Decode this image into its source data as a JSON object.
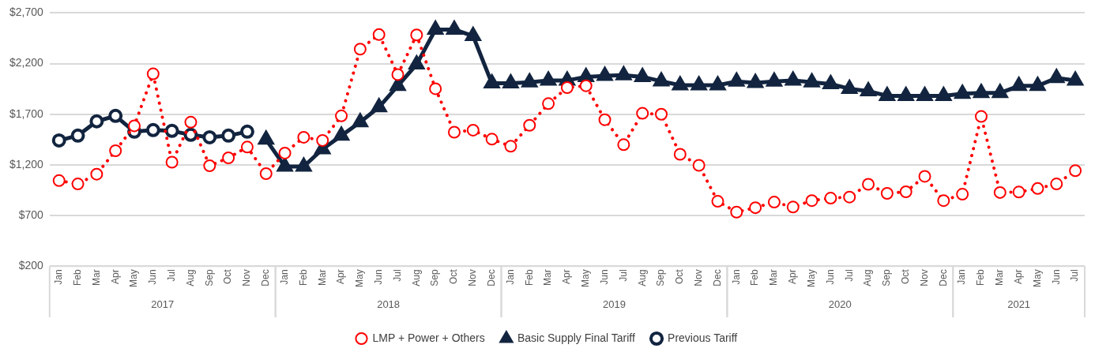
{
  "chart_data": {
    "type": "line",
    "categories": [
      "Jan",
      "Feb",
      "Mar",
      "Apr",
      "May",
      "Jun",
      "Jul",
      "Aug",
      "Sep",
      "Oct",
      "Nov",
      "Dec",
      "Jan",
      "Feb",
      "Mar",
      "Apr",
      "May",
      "Jun",
      "Jul",
      "Aug",
      "Sep",
      "Oct",
      "Nov",
      "Dec",
      "Jan",
      "Feb",
      "Mar",
      "Apr",
      "May",
      "Jun",
      "Jul",
      "Aug",
      "Sep",
      "Oct",
      "Nov",
      "Dec",
      "Jan",
      "Feb",
      "Mar",
      "Apr",
      "May",
      "Jun",
      "Jul",
      "Aug",
      "Sep",
      "Oct",
      "Nov",
      "Dec",
      "Jan",
      "Feb",
      "Mar",
      "Apr",
      "May",
      "Jun",
      "Jul"
    ],
    "series": [
      {
        "name": "Previous Tariff",
        "color": "#12243f",
        "marker": "circle",
        "line_style": "solid",
        "values": [
          1442,
          1489,
          1630,
          1684,
          1528,
          1544,
          1536,
          1497,
          1473,
          1489,
          1528,
          null,
          null,
          null,
          null,
          null,
          null,
          null,
          null,
          null,
          null,
          null,
          null,
          null,
          null,
          null,
          null,
          null,
          null,
          null,
          null,
          null,
          null,
          null,
          null,
          null,
          null,
          null,
          null,
          null,
          null,
          null,
          null,
          null,
          null,
          null,
          null,
          null,
          null,
          null,
          null,
          null,
          null,
          null,
          null
        ]
      },
      {
        "name": "Basic Supply Final Tariff",
        "color": "#12243f",
        "marker": "triangle",
        "line_style": "solid",
        "values": [
          null,
          null,
          null,
          null,
          null,
          null,
          null,
          null,
          null,
          null,
          null,
          1450,
          1184,
          1184,
          1356,
          1489,
          1622,
          1770,
          1981,
          2192,
          2536,
          2536,
          2473,
          2005,
          2005,
          2016,
          2034,
          2034,
          2069,
          2079,
          2086,
          2069,
          2026,
          1987,
          1987,
          1987,
          2023,
          2009,
          2023,
          2034,
          2016,
          1998,
          1952,
          1928,
          1882,
          1882,
          1882,
          1882,
          1903,
          1910,
          1910,
          1980,
          1980,
          2058,
          2034
        ]
      },
      {
        "name": "LMP + Power + Others",
        "color": "#ff0000",
        "marker": "circle",
        "line_style": "dotted",
        "values": [
          1045,
          1012,
          1109,
          1340,
          1586,
          2099,
          1227,
          1622,
          1192,
          1270,
          1376,
          1114,
          1317,
          1473,
          1442,
          1684,
          2343,
          2486,
          2092,
          2483,
          1952,
          1523,
          1543,
          1454,
          1384,
          1591,
          1805,
          1963,
          1981,
          1646,
          1400,
          1709,
          1700,
          1305,
          1196,
          841,
          734,
          778,
          833,
          784,
          848,
          872,
          883,
          1009,
          919,
          935,
          1087,
          848,
          911,
          1678,
          928,
          932,
          967,
          1012,
          1143
        ]
      }
    ],
    "ylim": [
      200,
      2700
    ],
    "yticks": [
      {
        "value": 200,
        "label": "$200"
      },
      {
        "value": 700,
        "label": "$700"
      },
      {
        "value": 1200,
        "label": "$1,200"
      },
      {
        "value": 1700,
        "label": "$1,700"
      },
      {
        "value": 2200,
        "label": "$2,200"
      },
      {
        "value": 2700,
        "label": "$2,700"
      }
    ],
    "grid": "y",
    "legend": "bottom",
    "annotations": [
      "2017",
      "2018",
      "2019",
      "2020",
      "2021"
    ]
  }
}
